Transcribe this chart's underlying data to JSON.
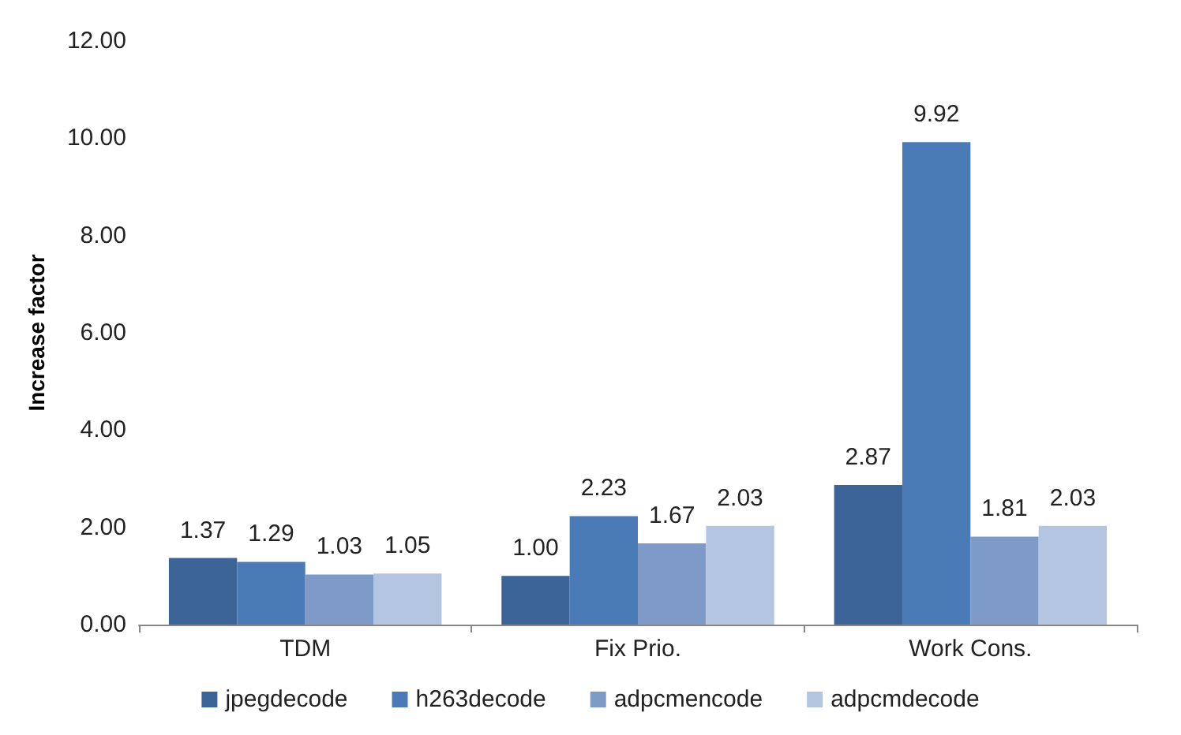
{
  "chart_data": {
    "type": "bar",
    "ylabel": "Increase factor",
    "categories": [
      "TDM",
      "Fix Prio.",
      "Work Cons."
    ],
    "series": [
      {
        "name": "jpegdecode",
        "color": "#3d6496",
        "values": [
          1.37,
          1.0,
          2.87
        ],
        "value_labels": [
          "1.37",
          "1.00",
          "2.87"
        ]
      },
      {
        "name": "h263decode",
        "color": "#4a7bb7",
        "values": [
          1.29,
          2.23,
          9.92
        ],
        "value_labels": [
          "1.29",
          "2.23",
          "9.92"
        ]
      },
      {
        "name": "adpcmencode",
        "color": "#7e9bc8",
        "values": [
          1.03,
          1.67,
          1.81
        ],
        "value_labels": [
          "1.03",
          "1.67",
          "1.81"
        ]
      },
      {
        "name": "adpcmdecode",
        "color": "#b4c5e1",
        "values": [
          1.05,
          2.03,
          2.03
        ],
        "value_labels": [
          "1.05",
          "2.03",
          "2.03"
        ]
      }
    ],
    "ylim": [
      0,
      12
    ],
    "yticks": [
      {
        "value": 0,
        "label": "0.00"
      },
      {
        "value": 2,
        "label": "2.00"
      },
      {
        "value": 4,
        "label": "4.00"
      },
      {
        "value": 6,
        "label": "6.00"
      },
      {
        "value": 8,
        "label": "8.00"
      },
      {
        "value": 10,
        "label": "10.00"
      },
      {
        "value": 12,
        "label": "12.00"
      }
    ],
    "grid": false,
    "legend": "bottom"
  }
}
